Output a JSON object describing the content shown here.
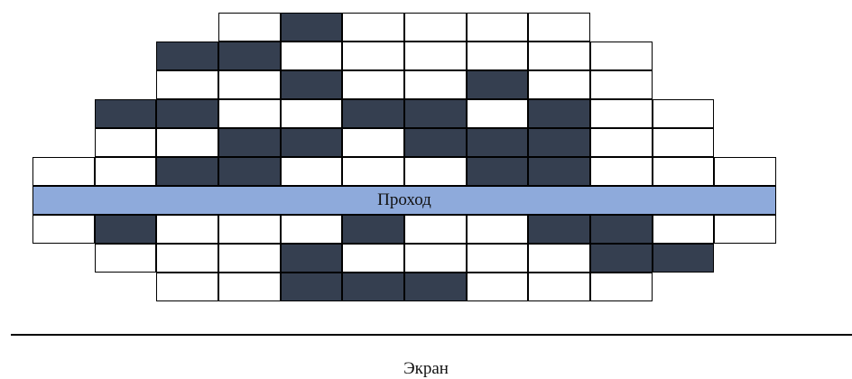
{
  "colors": {
    "occupied": "#353f50",
    "free": "#ffffff",
    "aisle": "#8eaadb",
    "border": "#000000"
  },
  "aisle_label": "Проход",
  "screen_label": "Экран",
  "rows": [
    {
      "row": 1,
      "start_col": 4,
      "seats": [
        0,
        1,
        0,
        0,
        0,
        0
      ]
    },
    {
      "row": 2,
      "start_col": 3,
      "seats": [
        1,
        1,
        0,
        0,
        0,
        0,
        0,
        0
      ]
    },
    {
      "row": 3,
      "start_col": 3,
      "seats": [
        0,
        0,
        1,
        0,
        0,
        1,
        0,
        0
      ]
    },
    {
      "row": 4,
      "start_col": 2,
      "seats": [
        1,
        1,
        0,
        0,
        1,
        1,
        0,
        1,
        0,
        0
      ]
    },
    {
      "row": 5,
      "start_col": 2,
      "seats": [
        0,
        0,
        1,
        1,
        0,
        1,
        1,
        1,
        0,
        0
      ]
    },
    {
      "row": 6,
      "start_col": 1,
      "seats": [
        0,
        0,
        1,
        1,
        0,
        0,
        0,
        1,
        1,
        0,
        0,
        0
      ]
    },
    {
      "row": 7,
      "start_col": 1,
      "seats": [
        0,
        1,
        0,
        0,
        0,
        1,
        0,
        0,
        1,
        1,
        0,
        0
      ]
    },
    {
      "row": 8,
      "start_col": 2,
      "seats": [
        0,
        0,
        0,
        1,
        0,
        0,
        0,
        0,
        1,
        1
      ]
    },
    {
      "row": 9,
      "start_col": 3,
      "seats": [
        0,
        0,
        1,
        1,
        1,
        0,
        0,
        0
      ]
    }
  ]
}
